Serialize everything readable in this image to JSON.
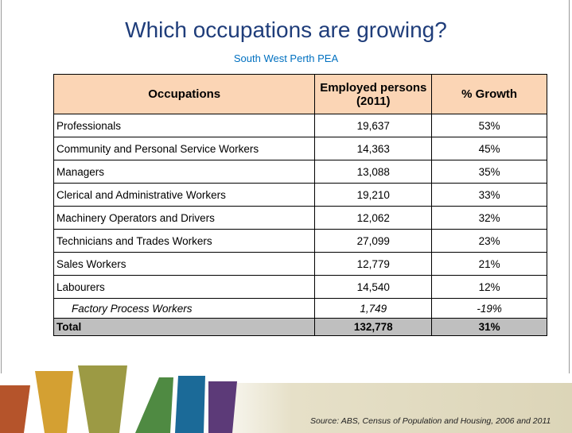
{
  "title": "Which occupations are growing?",
  "subtitle": "South West Perth PEA",
  "table": {
    "header": [
      "Occupations",
      "Employed persons (2011)",
      "% Growth"
    ],
    "rows": [
      [
        "Professionals",
        "19,637",
        "53%"
      ],
      [
        "Community and Personal Service Workers",
        "14,363",
        "45%"
      ],
      [
        "Managers",
        "13,088",
        "35%"
      ],
      [
        "Clerical and Administrative Workers",
        "19,210",
        "33%"
      ],
      [
        "Machinery Operators and Drivers",
        "12,062",
        "32%"
      ],
      [
        "Technicians and Trades Workers",
        "27,099",
        "23%"
      ],
      [
        "Sales Workers",
        "12,779",
        "21%"
      ],
      [
        "Labourers",
        "14,540",
        "12%"
      ],
      [
        "Factory Process Workers",
        "1,749",
        "-19%"
      ]
    ],
    "total": [
      "Total",
      "132,778",
      "31%"
    ]
  },
  "source": "Source:  ABS, Census of Population and Housing, 2006 and 2011"
}
